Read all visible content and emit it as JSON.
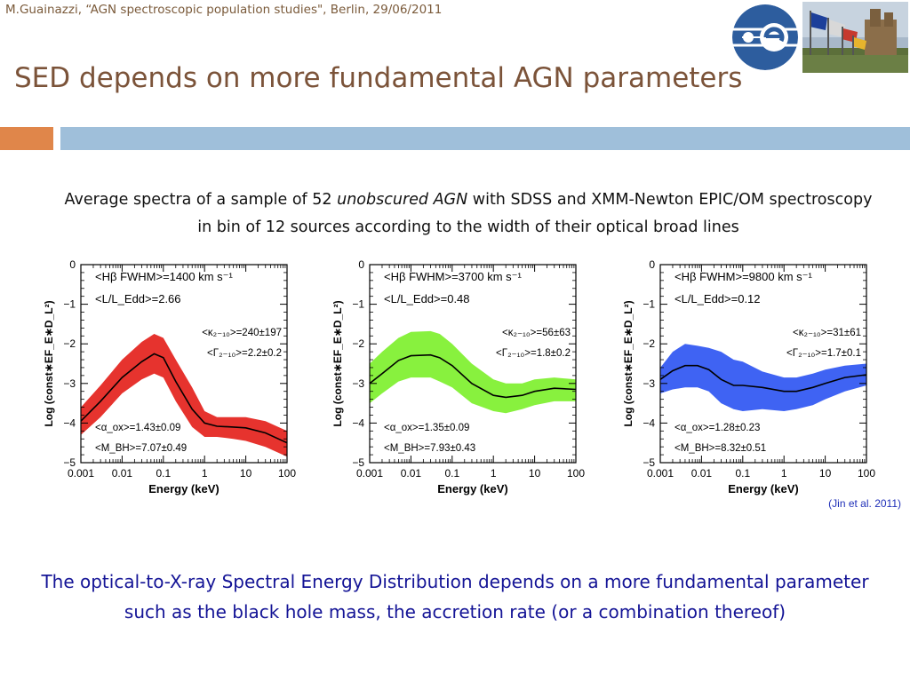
{
  "header": {
    "citation_line": "M.Guainazzi, “AGN spectroscopic population studies\", Berlin, 29/06/2011",
    "title": "SED depends on more fundamental AGN parameters"
  },
  "intro": {
    "text_before": "Average spectra of a sample of 52 ",
    "italic": "unobscured AGN",
    "text_after": " with SDSS and XMM-Newton EPIC/OM spectroscopy in bin of 12 sources according to the width of their optical broad lines"
  },
  "reference": "(Jin et al. 2011)",
  "conclusion": "The optical-to-X-ray Spectral Energy Distribution depends on a more fundamental parameter such as the black hole mass, the accretion rate (or a combination thereof)",
  "colors": {
    "title": "#7b5339",
    "accent_orange": "#e0864a",
    "accent_blue": "#9fbfda",
    "conclusion_text": "#141496",
    "esa_logo": "#2d5d9e",
    "series": [
      "#e4221c",
      "#7ef02e",
      "#2f56f2"
    ]
  },
  "chart_data": [
    {
      "type": "line",
      "xscale": "log",
      "xlim": [
        0.001,
        100
      ],
      "ylim": [
        -5,
        0
      ],
      "xlabel": "Energy (keV)",
      "ylabel": "Log (const∗EF_E∗D_L²)",
      "x_ticks": [
        "0.001",
        "0.01",
        "0.1",
        "1",
        "10",
        "100"
      ],
      "y_ticks": [
        "0",
        "−1",
        "−2",
        "−3",
        "−4",
        "−5"
      ],
      "annotations": {
        "fwhm": "<Hβ FWHM>=1400 km s⁻¹",
        "ledd": "<L/L_Edd>=2.66",
        "kappa": "<κ₂₋₁₀>=240±197",
        "gamma": "<Γ₂₋₁₀>=2.2±0.2",
        "alpha": "<α_ox>=1.43±0.09",
        "mbh": "<M_BH>=7.07±0.49"
      },
      "x": [
        0.001,
        0.003,
        0.01,
        0.03,
        0.06,
        0.1,
        0.2,
        0.5,
        1,
        2,
        5,
        10,
        30,
        100
      ],
      "y": [
        -3.95,
        -3.45,
        -2.85,
        -2.45,
        -2.25,
        -2.35,
        -2.95,
        -3.65,
        -4.0,
        -4.08,
        -4.1,
        -4.12,
        -4.25,
        -4.5
      ],
      "band_upper": [
        -3.6,
        -3.05,
        -2.4,
        -1.95,
        -1.75,
        -1.85,
        -2.4,
        -3.1,
        -3.7,
        -3.85,
        -3.85,
        -3.85,
        -3.95,
        -4.2
      ],
      "band_lower": [
        -4.3,
        -3.85,
        -3.25,
        -2.9,
        -2.75,
        -2.85,
        -3.45,
        -4.1,
        -4.35,
        -4.35,
        -4.4,
        -4.45,
        -4.6,
        -4.85
      ]
    },
    {
      "type": "line",
      "xscale": "log",
      "xlim": [
        0.001,
        100
      ],
      "ylim": [
        -5,
        0
      ],
      "xlabel": "Energy (keV)",
      "ylabel": "Log (const∗EF_E∗D_L²)",
      "x_ticks": [
        "0.001",
        "0.01",
        "0.1",
        "1",
        "10",
        "100"
      ],
      "y_ticks": [
        "0",
        "−1",
        "−2",
        "−3",
        "−4",
        "−5"
      ],
      "annotations": {
        "fwhm": "<Hβ FWHM>=3700 km s⁻¹",
        "ledd": "<L/L_Edd>=0.48",
        "kappa": "<κ₂₋₁₀>=56±63",
        "gamma": "<Γ₂₋₁₀>=1.8±0.2",
        "alpha": "<α_ox>=1.35±0.09",
        "mbh": "<M_BH>=7.93±0.43"
      },
      "x": [
        0.001,
        0.002,
        0.005,
        0.01,
        0.03,
        0.05,
        0.1,
        0.3,
        1,
        2,
        5,
        10,
        30,
        100
      ],
      "y": [
        -3.0,
        -2.75,
        -2.42,
        -2.3,
        -2.28,
        -2.35,
        -2.55,
        -3.0,
        -3.3,
        -3.35,
        -3.3,
        -3.2,
        -3.12,
        -3.15
      ],
      "band_upper": [
        -2.5,
        -2.2,
        -1.85,
        -1.7,
        -1.68,
        -1.75,
        -2.0,
        -2.5,
        -2.9,
        -3.0,
        -3.0,
        -2.9,
        -2.85,
        -2.9
      ],
      "band_lower": [
        -3.5,
        -3.25,
        -2.95,
        -2.85,
        -2.85,
        -2.95,
        -3.1,
        -3.5,
        -3.7,
        -3.75,
        -3.65,
        -3.55,
        -3.45,
        -3.45
      ]
    },
    {
      "type": "line",
      "xscale": "log",
      "xlim": [
        0.001,
        100
      ],
      "ylim": [
        -5,
        0
      ],
      "xlabel": "Energy (keV)",
      "ylabel": "Log (const∗EF_E∗D_L²)",
      "x_ticks": [
        "0.001",
        "0.01",
        "0.1",
        "1",
        "10",
        "100"
      ],
      "y_ticks": [
        "0",
        "−1",
        "−2",
        "−3",
        "−4",
        "−5"
      ],
      "annotations": {
        "fwhm": "<Hβ FWHM>=9800 km s⁻¹",
        "ledd": "<L/L_Edd>=0.12",
        "kappa": "<κ₂₋₁₀>=31±61",
        "gamma": "<Γ₂₋₁₀>=1.7±0.1",
        "alpha": "<α_ox>=1.28±0.23",
        "mbh": "<M_BH>=8.32±0.51"
      },
      "x": [
        0.001,
        0.002,
        0.004,
        0.008,
        0.015,
        0.03,
        0.06,
        0.1,
        0.3,
        1,
        2,
        5,
        10,
        30,
        100
      ],
      "y": [
        -2.9,
        -2.68,
        -2.55,
        -2.55,
        -2.65,
        -2.9,
        -3.05,
        -3.05,
        -3.1,
        -3.2,
        -3.2,
        -3.1,
        -3.0,
        -2.85,
        -2.78
      ],
      "band_upper": [
        -2.6,
        -2.2,
        -2.0,
        -2.05,
        -2.1,
        -2.2,
        -2.4,
        -2.45,
        -2.7,
        -2.85,
        -2.85,
        -2.75,
        -2.65,
        -2.55,
        -2.5
      ],
      "band_lower": [
        -3.25,
        -3.15,
        -3.1,
        -3.1,
        -3.2,
        -3.5,
        -3.65,
        -3.7,
        -3.65,
        -3.7,
        -3.65,
        -3.55,
        -3.4,
        -3.2,
        -3.05
      ]
    }
  ]
}
